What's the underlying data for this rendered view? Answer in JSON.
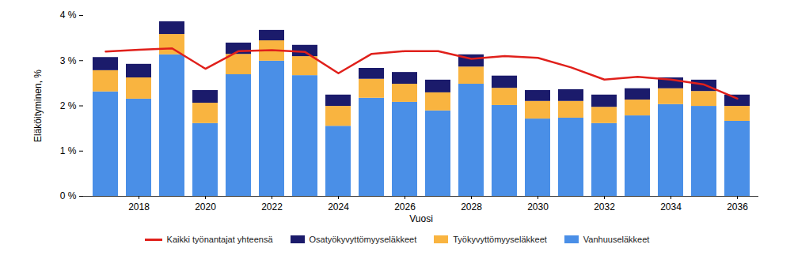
{
  "chart_data": {
    "type": "bar",
    "stacked": true,
    "x_label": "Vuosi",
    "y_label": "Eläköityminen, %",
    "categories": [
      null,
      "2018",
      null,
      "2020",
      null,
      "2022",
      null,
      "2024",
      null,
      "2026",
      null,
      "2028",
      null,
      "2030",
      null,
      "2032",
      null,
      "2034",
      null,
      "2036"
    ],
    "series": [
      {
        "name": "Kaikki työnantajat yhteensä",
        "type": "line",
        "color": "#e0201b",
        "values": [
          3.2,
          3.24,
          3.27,
          2.82,
          3.21,
          3.23,
          3.19,
          2.72,
          3.15,
          3.21,
          3.21,
          3.04,
          3.1,
          3.06,
          2.85,
          2.58,
          2.64,
          2.58,
          2.47,
          2.16
        ]
      },
      {
        "name": "Osatyökyvyttömyyseläkkeet",
        "type": "bar",
        "color": "#1b1b6b",
        "values": [
          0.29,
          0.3,
          0.28,
          0.28,
          0.25,
          0.23,
          0.25,
          0.25,
          0.24,
          0.26,
          0.28,
          0.27,
          0.27,
          0.24,
          0.26,
          0.27,
          0.25,
          0.24,
          0.25,
          0.25
        ]
      },
      {
        "name": "Työkyvyttömyyseläkkeet",
        "type": "bar",
        "color": "#f9b440",
        "values": [
          0.47,
          0.47,
          0.45,
          0.45,
          0.45,
          0.45,
          0.42,
          0.44,
          0.42,
          0.4,
          0.4,
          0.38,
          0.38,
          0.39,
          0.37,
          0.36,
          0.35,
          0.35,
          0.33,
          0.33
        ]
      },
      {
        "name": "Vanhuuseläkkeet",
        "type": "bar",
        "color": "#4a8fe7",
        "values": [
          2.31,
          2.15,
          3.13,
          1.61,
          2.69,
          2.99,
          2.67,
          1.55,
          2.17,
          2.08,
          1.89,
          2.48,
          2.01,
          1.71,
          1.73,
          1.61,
          1.78,
          2.03,
          1.99,
          1.66
        ]
      }
    ],
    "ylim": [
      0,
      4
    ],
    "yticks": [
      {
        "value": 0,
        "label": "0 %"
      },
      {
        "value": 1,
        "label": "1 %"
      },
      {
        "value": 2,
        "label": "2 %"
      },
      {
        "value": 3,
        "label": "3 %"
      },
      {
        "value": 4,
        "label": "4 %"
      }
    ],
    "grid": false,
    "legend": "bottom"
  }
}
